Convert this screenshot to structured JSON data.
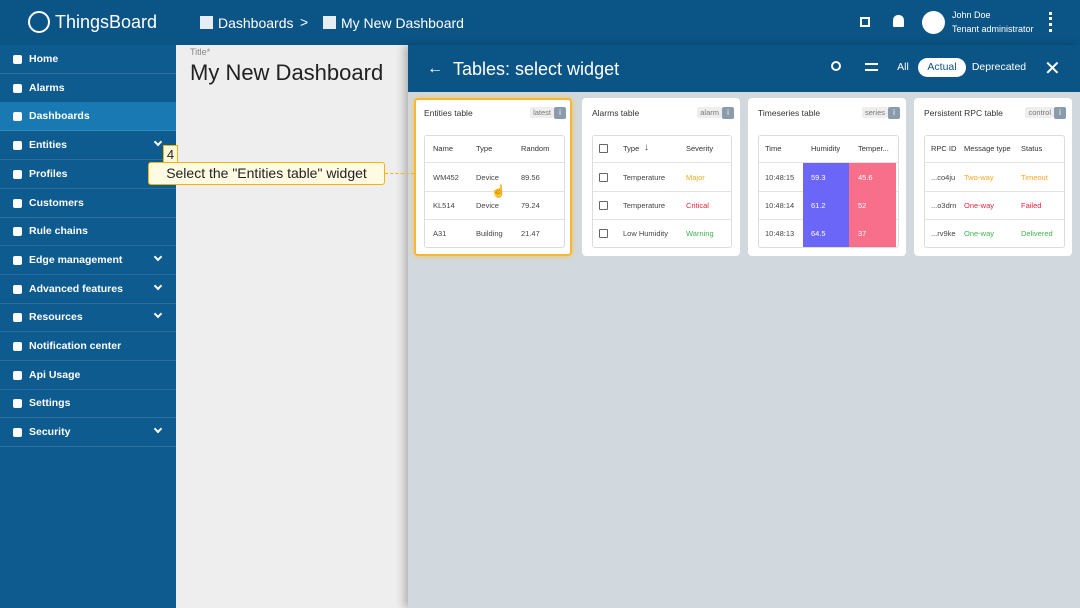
{
  "header": {
    "logo": "ThingsBoard",
    "breadcrumb": [
      "Dashboards",
      "My New Dashboard"
    ],
    "separator": ">",
    "user_name": "John Doe",
    "user_role": "Tenant administrator"
  },
  "sidebar": {
    "selected": 2,
    "items": [
      {
        "label": "Home",
        "expandable": false
      },
      {
        "label": "Alarms",
        "expandable": false
      },
      {
        "label": "Dashboards",
        "expandable": false
      },
      {
        "label": "Entities",
        "expandable": true
      },
      {
        "label": "Profiles",
        "expandable": false
      },
      {
        "label": "Customers",
        "expandable": false
      },
      {
        "label": "Rule chains",
        "expandable": false
      },
      {
        "label": "Edge management",
        "expandable": true
      },
      {
        "label": "Advanced features",
        "expandable": true
      },
      {
        "label": "Resources",
        "expandable": true
      },
      {
        "label": "Notification center",
        "expandable": false
      },
      {
        "label": "Api Usage",
        "expandable": false
      },
      {
        "label": "Settings",
        "expandable": false
      },
      {
        "label": "Security",
        "expandable": true
      }
    ]
  },
  "dashboard": {
    "title_label": "Title*",
    "title": "My New Dashboard"
  },
  "panel": {
    "title": "Tables: select widget",
    "filters": [
      "All",
      "Actual",
      "Deprecated"
    ],
    "active_filter": 1
  },
  "callout": {
    "step": 4,
    "text": "Select the \"Entities table\" widget"
  },
  "widgets": [
    {
      "title": "Entities table",
      "tag": "latest",
      "checkbox": false,
      "columns": [
        "Name",
        "Type",
        "Random"
      ],
      "rows": [
        [
          "WM452",
          "Device",
          89.56
        ],
        [
          "KL514",
          "Device",
          79.24
        ],
        [
          "A31",
          "Building",
          21.47
        ]
      ]
    },
    {
      "title": "Alarms table",
      "tag": "alarm",
      "checkbox": true,
      "columns": [
        "Type",
        "Severity"
      ],
      "rows": [
        [
          "Temperature",
          "Major"
        ],
        [
          "Temperature",
          "Critical"
        ],
        [
          "Low Humidity",
          "Warning"
        ]
      ]
    },
    {
      "title": "Timeseries table",
      "tag": "series",
      "checkbox": false,
      "columns": [
        "Time",
        "Humidity",
        "Temper..."
      ],
      "rows": [
        [
          "10:48:15",
          59.3,
          45.6
        ],
        [
          "10:48:14",
          61.2,
          52
        ],
        [
          "10:48:13",
          64.5,
          37
        ]
      ]
    },
    {
      "title": "Persistent RPC table",
      "tag": "control",
      "checkbox": false,
      "columns": [
        "RPC ID",
        "Message type",
        "Status"
      ],
      "rows": [
        [
          "...co4ju",
          "Two-way",
          "Timeout"
        ],
        [
          "...o3drn",
          "One-way",
          "Failed"
        ],
        [
          "...rv9ke",
          "One-way",
          "Delivered"
        ]
      ]
    }
  ]
}
